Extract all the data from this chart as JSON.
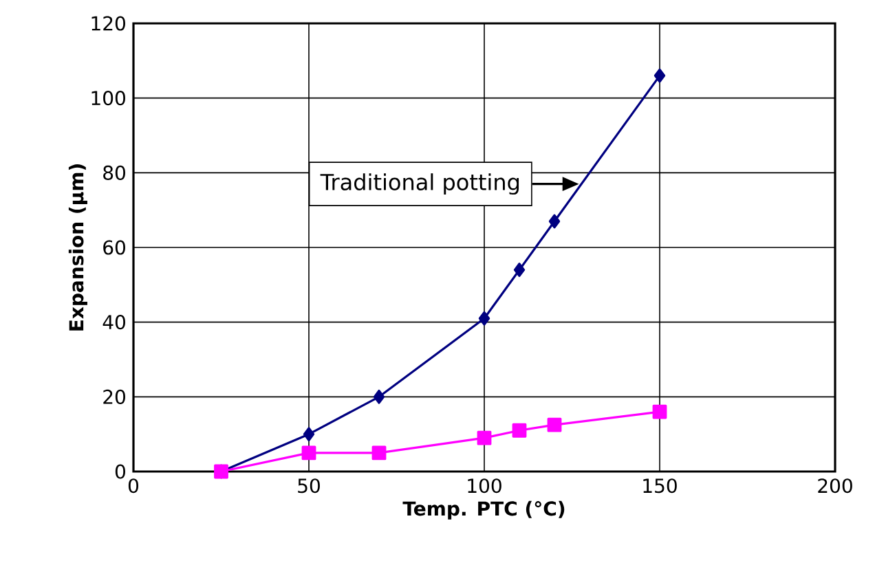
{
  "chart_data": {
    "type": "line",
    "xlabel": "Temp. PTC (°C)",
    "ylabel": "Expansion (µm)",
    "xlim": [
      0,
      200
    ],
    "xticks": [
      0,
      50,
      100,
      150,
      200
    ],
    "ylim": [
      0,
      120
    ],
    "yticks": [
      0,
      20,
      40,
      60,
      80,
      100,
      120
    ],
    "grid": true,
    "series": [
      {
        "color": "#000080",
        "marker": "diamond",
        "x": [
          25,
          50,
          70,
          100,
          110,
          120,
          150
        ],
        "values": [
          0,
          10,
          20,
          41,
          54,
          67,
          106
        ]
      },
      {
        "color": "#ff00ff",
        "marker": "square",
        "x": [
          25,
          50,
          70,
          100,
          110,
          120,
          150
        ],
        "values": [
          0,
          5,
          5,
          9,
          11,
          12.5,
          16
        ]
      }
    ],
    "annotations": [
      {
        "text": "Traditional potting",
        "x": 127,
        "y": 77
      }
    ]
  }
}
